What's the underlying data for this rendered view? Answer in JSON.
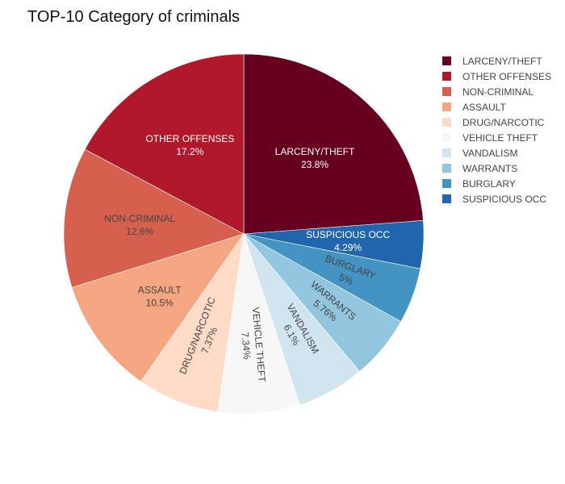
{
  "chart_data": {
    "type": "pie",
    "title": "TOP-10 Category of criminals",
    "legend_position": "top-right",
    "slices": [
      {
        "label": "LARCENY/THEFT",
        "display": "LARCENY/THEFT",
        "percent_text": "23.8%",
        "value": 23.8,
        "color": "#67001f",
        "text_color": "#ffffff",
        "label_orientation": "horizontal"
      },
      {
        "label": "SUSPICIOUS OCC",
        "display": "SUSPICIOUS OCC",
        "percent_text": "4.29%",
        "value": 4.29,
        "color": "#2166ac",
        "text_color": "#ffffff",
        "label_orientation": "horizontal"
      },
      {
        "label": "BURGLARY",
        "display": "BURGLARY",
        "percent_text": "5%",
        "value": 5.0,
        "color": "#4393c3",
        "text_color": "#444444",
        "label_orientation": "radial"
      },
      {
        "label": "WARRANTS",
        "display": "WARRANTS",
        "percent_text": "5.76%",
        "value": 5.76,
        "color": "#92c5de",
        "text_color": "#444444",
        "label_orientation": "radial"
      },
      {
        "label": "VANDALISM",
        "display": "VANDALISM",
        "percent_text": "6.1%",
        "value": 6.1,
        "color": "#d1e5f0",
        "text_color": "#444444",
        "label_orientation": "radial"
      },
      {
        "label": "VEHICLE THEFT",
        "display": "VEHICLE THEFT",
        "percent_text": "7.34%",
        "value": 7.34,
        "color": "#f7f7f7",
        "text_color": "#444444",
        "label_orientation": "radial"
      },
      {
        "label": "DRUG/NARCOTIC",
        "display": "DRUG/NARCOTIC",
        "percent_text": "7.37%",
        "value": 7.37,
        "color": "#fddbc7",
        "text_color": "#444444",
        "label_orientation": "radial"
      },
      {
        "label": "ASSAULT",
        "display": "ASSAULT",
        "percent_text": "10.5%",
        "value": 10.5,
        "color": "#f4a582",
        "text_color": "#444444",
        "label_orientation": "horizontal"
      },
      {
        "label": "NON-CRIMINAL",
        "display": "NON-CRIMINAL",
        "percent_text": "12.6%",
        "value": 12.6,
        "color": "#d6604d",
        "text_color": "#444444",
        "label_orientation": "horizontal"
      },
      {
        "label": "OTHER OFFENSES",
        "display": "OTHER OFFENSES",
        "percent_text": "17.2%",
        "value": 17.2,
        "color": "#b2182b",
        "text_color": "#ffffff",
        "label_orientation": "horizontal"
      }
    ],
    "legend": [
      {
        "label": "LARCENY/THEFT",
        "color": "#67001f"
      },
      {
        "label": "OTHER OFFENSES",
        "color": "#b2182b"
      },
      {
        "label": "NON-CRIMINAL",
        "color": "#d6604d"
      },
      {
        "label": "ASSAULT",
        "color": "#f4a582"
      },
      {
        "label": "DRUG/NARCOTIC",
        "color": "#fddbc7"
      },
      {
        "label": "VEHICLE THEFT",
        "color": "#f7f7f7"
      },
      {
        "label": "VANDALISM",
        "color": "#d1e5f0"
      },
      {
        "label": "WARRANTS",
        "color": "#92c5de"
      },
      {
        "label": "BURGLARY",
        "color": "#4393c3"
      },
      {
        "label": "SUSPICIOUS OCC",
        "color": "#2166ac"
      }
    ]
  }
}
